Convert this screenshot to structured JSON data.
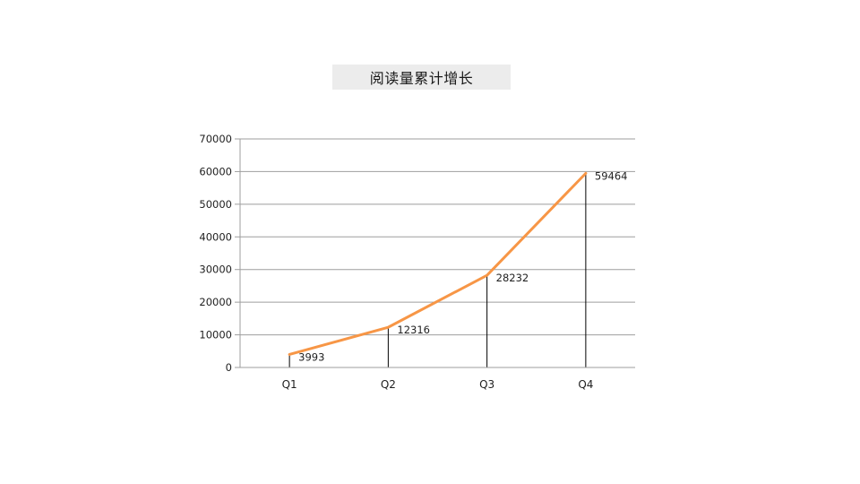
{
  "title": {
    "text": "阅读量累计增长"
  },
  "chart_data": {
    "type": "line",
    "title": "阅读量累计增长",
    "categories": [
      "Q1",
      "Q2",
      "Q3",
      "Q4"
    ],
    "values": [
      3993,
      12316,
      28232,
      59464
    ],
    "data_labels": [
      "3993",
      "12316",
      "28232",
      "59464"
    ],
    "xlabel": "",
    "ylabel": "",
    "ylim": [
      0,
      70000
    ],
    "ytick_step": 10000,
    "ytick_labels": [
      "0",
      "10000",
      "20000",
      "30000",
      "40000",
      "50000",
      "60000",
      "70000"
    ],
    "grid": true,
    "legend": "none",
    "drop_lines": true,
    "colors": {
      "line": "#F79646",
      "gridline": "#9e9e9e",
      "axis": "#9e9e9e",
      "drop_line": "#000000",
      "text": "#1f1f1f",
      "title_bg": "#ececec"
    }
  }
}
